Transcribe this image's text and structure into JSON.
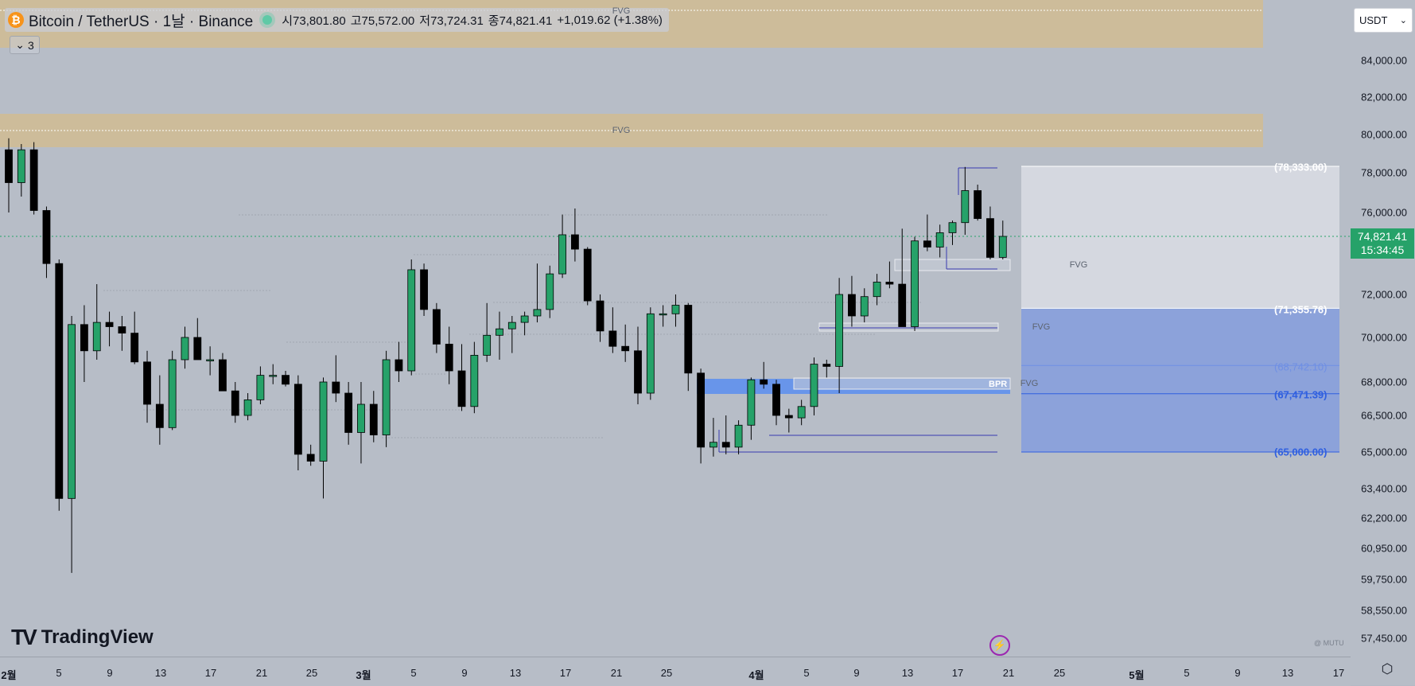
{
  "header": {
    "symbol": "Bitcoin / TetherUS · 1날 · Binance",
    "open": "시73,801.80",
    "high": "고75,572.00",
    "low": "저73,724.31",
    "close": "종74,821.41",
    "change": "+1,019.62 (+1.38%)",
    "indicator_count": "3"
  },
  "currency": "USDT",
  "current_price": {
    "value": "74,821.41",
    "countdown": "15:34:45"
  },
  "price_axis": [
    "84,000.00",
    "82,000.00",
    "80,000.00",
    "78,000.00",
    "76,000.00",
    "72,000.00",
    "70,000.00",
    "68,000.00",
    "66,500.00",
    "65,000.00",
    "63,400.00",
    "62,200.00",
    "60,950.00",
    "59,750.00",
    "58,550.00",
    "57,450.00"
  ],
  "time_axis": [
    {
      "label": "2월",
      "month": true
    },
    {
      "label": "5"
    },
    {
      "label": "9"
    },
    {
      "label": "13"
    },
    {
      "label": "17"
    },
    {
      "label": "21"
    },
    {
      "label": "25"
    },
    {
      "label": "3월",
      "month": true
    },
    {
      "label": "5"
    },
    {
      "label": "9"
    },
    {
      "label": "13"
    },
    {
      "label": "17"
    },
    {
      "label": "21"
    },
    {
      "label": "25"
    },
    {
      "label": "4월",
      "month": true
    },
    {
      "label": "5"
    },
    {
      "label": "9"
    },
    {
      "label": "13"
    },
    {
      "label": "17"
    },
    {
      "label": "21"
    },
    {
      "label": "25"
    },
    {
      "label": "5월",
      "month": true
    },
    {
      "label": "5"
    },
    {
      "label": "9"
    },
    {
      "label": "13"
    },
    {
      "label": "17"
    }
  ],
  "annotations": {
    "fvg": "FVG",
    "bpr": "BPR",
    "tp1": "(78,333.00)",
    "entry": "(71,355.76)",
    "mid": "(68,742.10)",
    "lower": "(67,471.39)",
    "stop": "(65,000.00)",
    "watermark": "@ MUTU"
  },
  "logo_text": "TradingView",
  "colors": {
    "up": "#26a269",
    "down": "#000000",
    "fvg_zone": "#d2bc8f",
    "bpr": "#5b8ef0",
    "target": "#dfe2e8",
    "stop": "#7d99e0"
  },
  "chart_data": {
    "type": "candlestick",
    "title": "Bitcoin / TetherUS",
    "xlabel": "",
    "ylabel": "",
    "ylim": [
      57000,
      86000
    ],
    "candles": [
      {
        "o": 79200,
        "h": 79800,
        "l": 76000,
        "c": 77500
      },
      {
        "o": 77500,
        "h": 79500,
        "l": 76800,
        "c": 79200
      },
      {
        "o": 79200,
        "h": 79600,
        "l": 75900,
        "c": 76100
      },
      {
        "o": 76100,
        "h": 76300,
        "l": 72800,
        "c": 73500
      },
      {
        "o": 73500,
        "h": 73700,
        "l": 62500,
        "c": 63000
      },
      {
        "o": 63000,
        "h": 71000,
        "l": 60000,
        "c": 70600
      },
      {
        "o": 70600,
        "h": 71500,
        "l": 68000,
        "c": 69400
      },
      {
        "o": 69400,
        "h": 72500,
        "l": 69000,
        "c": 70700
      },
      {
        "o": 70700,
        "h": 71200,
        "l": 69600,
        "c": 70500
      },
      {
        "o": 70500,
        "h": 71000,
        "l": 69400,
        "c": 70200
      },
      {
        "o": 70200,
        "h": 71200,
        "l": 68800,
        "c": 68900
      },
      {
        "o": 68900,
        "h": 69400,
        "l": 66200,
        "c": 67000
      },
      {
        "o": 67000,
        "h": 68300,
        "l": 65300,
        "c": 66000
      },
      {
        "o": 66000,
        "h": 69400,
        "l": 65900,
        "c": 69000
      },
      {
        "o": 69000,
        "h": 70500,
        "l": 68600,
        "c": 70000
      },
      {
        "o": 70000,
        "h": 70900,
        "l": 69000,
        "c": 69000
      },
      {
        "o": 69000,
        "h": 69600,
        "l": 68300,
        "c": 69000
      },
      {
        "o": 69000,
        "h": 69300,
        "l": 67600,
        "c": 67600
      },
      {
        "o": 67600,
        "h": 68000,
        "l": 66200,
        "c": 66500
      },
      {
        "o": 66500,
        "h": 67500,
        "l": 66300,
        "c": 67200
      },
      {
        "o": 67200,
        "h": 68700,
        "l": 67000,
        "c": 68300
      },
      {
        "o": 68300,
        "h": 68800,
        "l": 67900,
        "c": 68300
      },
      {
        "o": 68300,
        "h": 68500,
        "l": 67800,
        "c": 67900
      },
      {
        "o": 67900,
        "h": 68300,
        "l": 64200,
        "c": 64900
      },
      {
        "o": 64900,
        "h": 65300,
        "l": 64400,
        "c": 64600
      },
      {
        "o": 64600,
        "h": 68200,
        "l": 63000,
        "c": 68000
      },
      {
        "o": 68000,
        "h": 69200,
        "l": 67100,
        "c": 67500
      },
      {
        "o": 67500,
        "h": 68000,
        "l": 65300,
        "c": 65800
      },
      {
        "o": 65800,
        "h": 68000,
        "l": 64500,
        "c": 67000
      },
      {
        "o": 67000,
        "h": 67600,
        "l": 65400,
        "c": 65700
      },
      {
        "o": 65700,
        "h": 69400,
        "l": 65200,
        "c": 69000
      },
      {
        "o": 69000,
        "h": 69800,
        "l": 68000,
        "c": 68500
      },
      {
        "o": 68500,
        "h": 73700,
        "l": 68300,
        "c": 73200
      },
      {
        "o": 73200,
        "h": 73500,
        "l": 71000,
        "c": 71300
      },
      {
        "o": 71300,
        "h": 71600,
        "l": 69300,
        "c": 69700
      },
      {
        "o": 69700,
        "h": 70500,
        "l": 67900,
        "c": 68500
      },
      {
        "o": 68500,
        "h": 69700,
        "l": 66700,
        "c": 66900
      },
      {
        "o": 66900,
        "h": 69800,
        "l": 66600,
        "c": 69200
      },
      {
        "o": 69200,
        "h": 71600,
        "l": 68900,
        "c": 70100
      },
      {
        "o": 70100,
        "h": 71200,
        "l": 69000,
        "c": 70400
      },
      {
        "o": 70400,
        "h": 71000,
        "l": 69300,
        "c": 70700
      },
      {
        "o": 70700,
        "h": 71200,
        "l": 70100,
        "c": 71000
      },
      {
        "o": 71000,
        "h": 73500,
        "l": 70700,
        "c": 71300
      },
      {
        "o": 71300,
        "h": 73400,
        "l": 70900,
        "c": 73000
      },
      {
        "o": 73000,
        "h": 75900,
        "l": 72800,
        "c": 74900
      },
      {
        "o": 74900,
        "h": 76200,
        "l": 73600,
        "c": 74200
      },
      {
        "o": 74200,
        "h": 74300,
        "l": 71500,
        "c": 71700
      },
      {
        "o": 71700,
        "h": 72000,
        "l": 69800,
        "c": 70300
      },
      {
        "o": 70300,
        "h": 71400,
        "l": 69300,
        "c": 69600
      },
      {
        "o": 69600,
        "h": 70600,
        "l": 68900,
        "c": 69400
      },
      {
        "o": 69400,
        "h": 70500,
        "l": 67000,
        "c": 67500
      },
      {
        "o": 67500,
        "h": 71400,
        "l": 67200,
        "c": 71100
      },
      {
        "o": 71100,
        "h": 71500,
        "l": 70500,
        "c": 71100
      },
      {
        "o": 71100,
        "h": 72000,
        "l": 70500,
        "c": 71500
      },
      {
        "o": 71500,
        "h": 71600,
        "l": 67600,
        "c": 68400
      },
      {
        "o": 68400,
        "h": 68600,
        "l": 64500,
        "c": 65200
      },
      {
        "o": 65200,
        "h": 66400,
        "l": 64800,
        "c": 65400
      },
      {
        "o": 65400,
        "h": 66500,
        "l": 64900,
        "c": 65200
      },
      {
        "o": 65200,
        "h": 66300,
        "l": 64900,
        "c": 66100
      },
      {
        "o": 66100,
        "h": 68200,
        "l": 65500,
        "c": 68100
      },
      {
        "o": 68100,
        "h": 68900,
        "l": 67700,
        "c": 67900
      },
      {
        "o": 67900,
        "h": 68100,
        "l": 66100,
        "c": 66500
      },
      {
        "o": 66500,
        "h": 66800,
        "l": 65800,
        "c": 66400
      },
      {
        "o": 66400,
        "h": 67200,
        "l": 66100,
        "c": 66900
      },
      {
        "o": 66900,
        "h": 69100,
        "l": 66500,
        "c": 68800
      },
      {
        "o": 68800,
        "h": 69000,
        "l": 68200,
        "c": 68700
      },
      {
        "o": 68700,
        "h": 72800,
        "l": 67500,
        "c": 72000
      },
      {
        "o": 72000,
        "h": 72900,
        "l": 70500,
        "c": 71000
      },
      {
        "o": 71000,
        "h": 72300,
        "l": 70700,
        "c": 71900
      },
      {
        "o": 71900,
        "h": 73000,
        "l": 71500,
        "c": 72600
      },
      {
        "o": 72600,
        "h": 73600,
        "l": 72300,
        "c": 72500
      },
      {
        "o": 72500,
        "h": 75200,
        "l": 70500,
        "c": 70500
      },
      {
        "o": 70500,
        "h": 74800,
        "l": 70300,
        "c": 74600
      },
      {
        "o": 74600,
        "h": 75900,
        "l": 74100,
        "c": 74300
      },
      {
        "o": 74300,
        "h": 75400,
        "l": 73800,
        "c": 75000
      },
      {
        "o": 75000,
        "h": 75600,
        "l": 74400,
        "c": 75500
      },
      {
        "o": 75500,
        "h": 78300,
        "l": 74900,
        "c": 77100
      },
      {
        "o": 77100,
        "h": 77400,
        "l": 75600,
        "c": 75700
      },
      {
        "o": 75700,
        "h": 76300,
        "l": 73700,
        "c": 73800
      },
      {
        "o": 73800,
        "h": 75600,
        "l": 73700,
        "c": 74821
      }
    ]
  }
}
